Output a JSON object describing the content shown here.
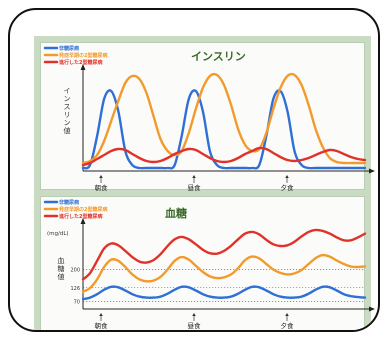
{
  "chart_data": [
    {
      "type": "line",
      "title": "インスリン",
      "ylabel": "インスリン値",
      "xticks": [
        "朝食",
        "昼食",
        "夕食"
      ],
      "legend": [
        "非糖尿病",
        "発症早期の2型糖尿病",
        "進行した2型糖尿病"
      ],
      "x": [
        0,
        0.3,
        0.6,
        0.9,
        1.2,
        1.5,
        1.8,
        2.1,
        2.4,
        2.7,
        3.0,
        3.3,
        3.6,
        3.9,
        4.2,
        4.5,
        4.8,
        5.1,
        5.4,
        5.7,
        6.0,
        6.3,
        6.6,
        6.9,
        7.2,
        7.5,
        7.8,
        8.1,
        8.4,
        8.7,
        9.0,
        9.3,
        9.6,
        9.9,
        10.2,
        10.5,
        10.8,
        11.1,
        11.4,
        11.7,
        12.0
      ],
      "xlim": [
        0,
        12
      ],
      "ylim": [
        0,
        10
      ],
      "series": [
        {
          "name": "非糖尿病",
          "color": "#2f6fd6",
          "values": [
            0.3,
            0.6,
            3.5,
            7.2,
            8.0,
            6.0,
            2.0,
            0.6,
            0.3,
            0.3,
            0.3,
            0.3,
            0.3,
            0.6,
            3.5,
            7.2,
            8.0,
            6.0,
            2.0,
            0.6,
            0.3,
            0.3,
            0.3,
            0.3,
            0.3,
            0.6,
            3.5,
            7.2,
            8.0,
            6.0,
            2.0,
            0.6,
            0.3,
            0.3,
            0.3,
            0.3,
            0.3,
            0.3,
            0.3,
            0.3,
            0.3
          ]
        },
        {
          "name": "発症早期の2型糖尿病",
          "color": "#f39a2c",
          "values": [
            0.8,
            1.0,
            1.6,
            3.0,
            5.0,
            7.0,
            8.8,
            9.5,
            9.2,
            7.8,
            5.5,
            3.2,
            2.0,
            1.6,
            2.0,
            3.8,
            6.2,
            8.3,
            9.5,
            9.6,
            8.6,
            6.6,
            4.2,
            2.6,
            2.0,
            2.2,
            3.8,
            6.2,
            8.3,
            9.5,
            9.6,
            8.6,
            6.6,
            4.2,
            2.4,
            1.3,
            0.9,
            0.8,
            0.8,
            0.8,
            0.8
          ]
        },
        {
          "name": "進行した2型糖尿病",
          "color": "#e0312a",
          "values": [
            0.6,
            0.8,
            1.2,
            1.6,
            2.0,
            2.2,
            2.1,
            1.7,
            1.3,
            1.0,
            0.9,
            1.0,
            1.3,
            1.7,
            2.0,
            2.2,
            2.1,
            1.7,
            1.3,
            1.0,
            0.9,
            1.0,
            1.3,
            1.7,
            2.0,
            2.3,
            2.2,
            1.8,
            1.4,
            1.1,
            1.0,
            1.1,
            1.3,
            1.6,
            1.9,
            2.1,
            2.0,
            1.7,
            1.4,
            1.2,
            1.1
          ]
        }
      ],
      "grid": false
    },
    {
      "type": "line",
      "title": "血糖",
      "ylabel": "血糖値",
      "yunit": "(mg/dL)",
      "xticks": [
        "朝食",
        "昼食",
        "夕食"
      ],
      "ytick_labels": [
        "70",
        "126",
        "200"
      ],
      "yticks": [
        70,
        126,
        200
      ],
      "legend": [
        "非糖尿病",
        "発症早期の2型糖尿病",
        "進行した2型糖尿病"
      ],
      "x": [
        0,
        0.3,
        0.6,
        0.9,
        1.2,
        1.5,
        1.8,
        2.1,
        2.4,
        2.7,
        3.0,
        3.3,
        3.6,
        3.9,
        4.2,
        4.5,
        4.8,
        5.1,
        5.4,
        5.7,
        6.0,
        6.3,
        6.6,
        6.9,
        7.2,
        7.5,
        7.8,
        8.1,
        8.4,
        8.7,
        9.0,
        9.3,
        9.6,
        9.9,
        10.2,
        10.5,
        10.8,
        11.1,
        11.4,
        11.7,
        12.0
      ],
      "xlim": [
        0,
        12
      ],
      "ylim": [
        40,
        380
      ],
      "series": [
        {
          "name": "非糖尿病",
          "color": "#2f6fd6",
          "values": [
            80,
            86,
            100,
            118,
            130,
            128,
            115,
            100,
            90,
            86,
            86,
            90,
            102,
            118,
            130,
            128,
            115,
            100,
            90,
            86,
            86,
            90,
            102,
            118,
            130,
            128,
            115,
            100,
            90,
            86,
            86,
            90,
            102,
            118,
            130,
            128,
            115,
            100,
            92,
            88,
            86
          ]
        },
        {
          "name": "発症早期の2型糖尿病",
          "color": "#f39a2c",
          "values": [
            110,
            125,
            160,
            210,
            240,
            235,
            210,
            180,
            160,
            152,
            155,
            170,
            200,
            235,
            250,
            240,
            215,
            190,
            172,
            165,
            168,
            180,
            205,
            238,
            252,
            245,
            222,
            200,
            186,
            180,
            184,
            198,
            222,
            246,
            258,
            252,
            236,
            222,
            212,
            210,
            212
          ]
        },
        {
          "name": "進行した2型糖尿病",
          "color": "#e0312a",
          "values": [
            160,
            185,
            235,
            285,
            305,
            298,
            275,
            250,
            232,
            228,
            238,
            262,
            295,
            322,
            332,
            322,
            302,
            280,
            266,
            264,
            275,
            296,
            322,
            345,
            352,
            342,
            320,
            302,
            295,
            298,
            312,
            334,
            352,
            360,
            356,
            345,
            330,
            318,
            318,
            330,
            345
          ]
        }
      ],
      "grid": false
    }
  ]
}
